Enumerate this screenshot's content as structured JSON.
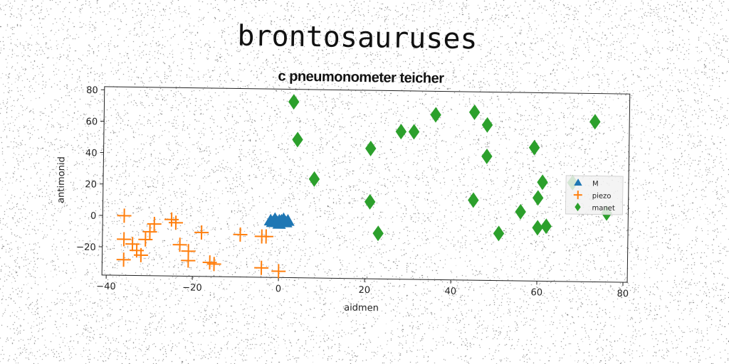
{
  "chart_data": {
    "type": "scatter",
    "title": "brontosauruses",
    "subtitle": "c pneumonometer teicher",
    "xlabel": "aidmen",
    "ylabel": "antimonid",
    "xlim": [
      -41,
      81
    ],
    "ylim": [
      -38,
      82
    ],
    "xticks": [
      -40,
      -20,
      0,
      20,
      40,
      60,
      80
    ],
    "yticks": [
      -20,
      0,
      20,
      40,
      60,
      80
    ],
    "grid": false,
    "legend_position": "right",
    "series": [
      {
        "name": "M",
        "marker": "triangle",
        "color": "#1f77b4",
        "points": [
          [
            -2,
            -2
          ],
          [
            -1,
            -1
          ],
          [
            0,
            -2
          ],
          [
            1,
            -1
          ],
          [
            2,
            -2
          ],
          [
            -1.5,
            -3
          ],
          [
            1.5,
            -3
          ],
          [
            0,
            -4
          ],
          [
            0.5,
            -2
          ],
          [
            -0.5,
            -3
          ]
        ]
      },
      {
        "name": "piezo",
        "marker": "plus",
        "color": "#ff7f0e",
        "points": [
          [
            -36,
            0
          ],
          [
            -36,
            -15
          ],
          [
            -36,
            -28
          ],
          [
            -34,
            -18
          ],
          [
            -33,
            -22
          ],
          [
            -32,
            -25
          ],
          [
            -31,
            -15
          ],
          [
            -30,
            -10
          ],
          [
            -29,
            -5
          ],
          [
            -25,
            -2
          ],
          [
            -24,
            -4
          ],
          [
            -23,
            -18
          ],
          [
            -21,
            -22
          ],
          [
            -21,
            -28
          ],
          [
            -18,
            -10
          ],
          [
            -16,
            -29
          ],
          [
            -15,
            -30
          ],
          [
            -9,
            -11
          ],
          [
            -4,
            -12
          ],
          [
            -3,
            -12
          ],
          [
            -4,
            -32
          ],
          [
            0,
            -34
          ]
        ]
      },
      {
        "name": "manet",
        "marker": "diamond",
        "color": "#2ca02c",
        "points": [
          [
            3,
            74
          ],
          [
            4,
            50
          ],
          [
            8,
            25
          ],
          [
            21,
            45
          ],
          [
            21,
            11
          ],
          [
            23,
            -9
          ],
          [
            28,
            56
          ],
          [
            31,
            56
          ],
          [
            36,
            67
          ],
          [
            45,
            69
          ],
          [
            45,
            13
          ],
          [
            48,
            61
          ],
          [
            48,
            41
          ],
          [
            51,
            -8
          ],
          [
            56,
            6
          ],
          [
            59,
            47
          ],
          [
            60,
            15
          ],
          [
            60,
            -4
          ],
          [
            61,
            25
          ],
          [
            62,
            -3
          ],
          [
            68,
            25
          ],
          [
            73,
            64
          ],
          [
            76,
            6
          ]
        ]
      }
    ]
  }
}
